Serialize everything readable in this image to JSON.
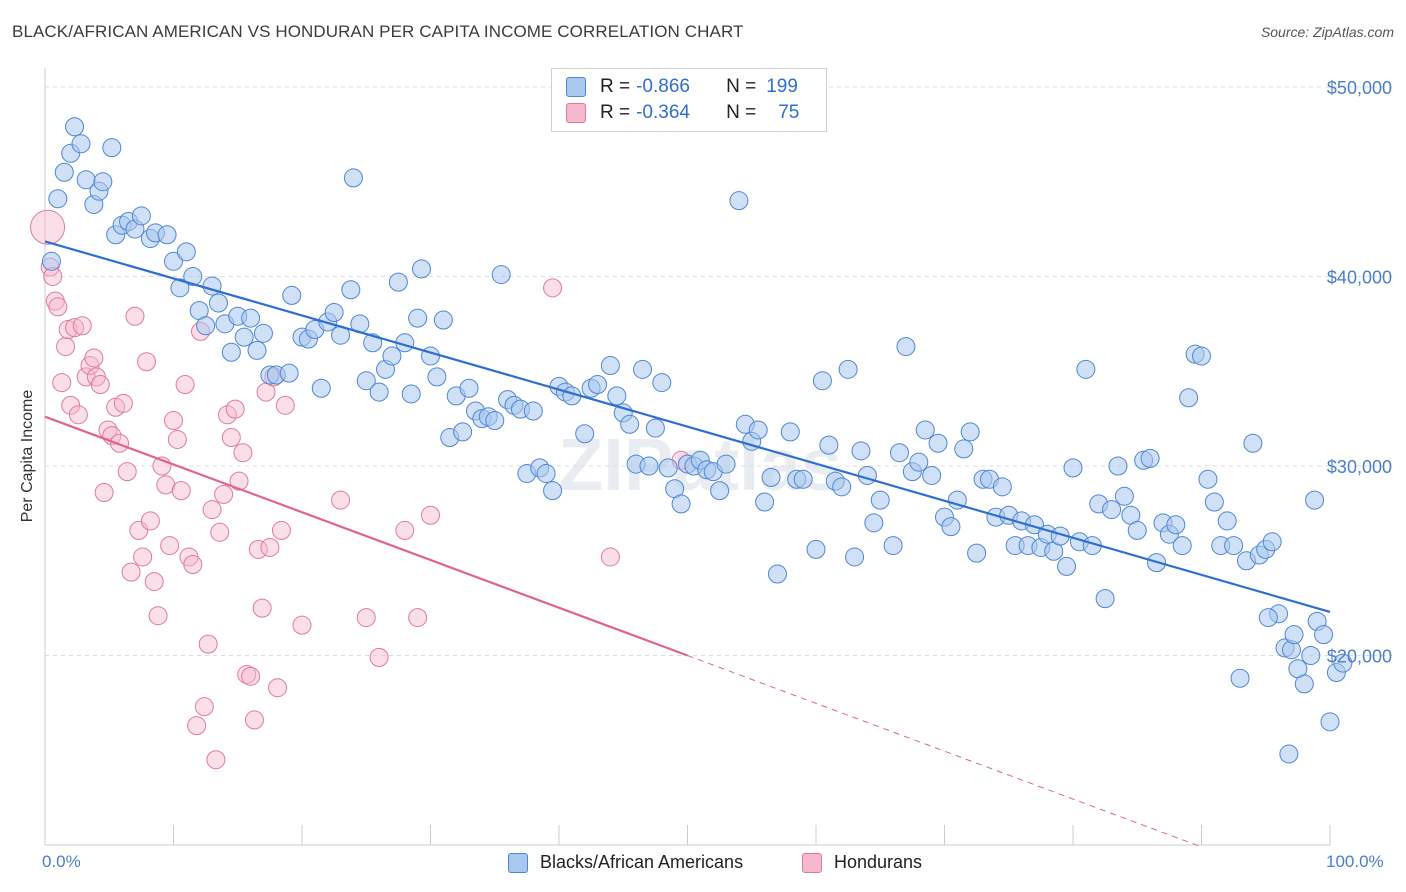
{
  "title": "BLACK/AFRICAN AMERICAN VS HONDURAN PER CAPITA INCOME CORRELATION CHART",
  "source": "Source: ZipAtlas.com",
  "colors": {
    "blue_fill": "#a9c8f0",
    "blue_stroke": "#4f86d6",
    "blue_line": "#2e6fcf",
    "pink_fill": "#f6b8cc",
    "pink_stroke": "#e07a9c",
    "pink_line": "#e0648e",
    "tick_label": "#4a7fc9",
    "grid": "#dcdcdc"
  },
  "legend": {
    "rows": [
      {
        "r_label": "R =",
        "r_value": "-0.866",
        "n_label": "N =",
        "n_value": "199",
        "color": "#a9c8f0"
      },
      {
        "r_label": "R =",
        "r_value": "-0.364",
        "n_label": "N =",
        "n_value": "75",
        "color": "#f6b8cc"
      }
    ]
  },
  "bottom_legend": [
    "Blacks/African Americans",
    "Hondurans"
  ],
  "watermark": "ZIPatlas",
  "chart_data": {
    "type": "scatter",
    "title": "BLACK/AFRICAN AMERICAN VS HONDURAN PER CAPITA INCOME CORRELATION CHART",
    "xlabel": "",
    "ylabel": "Per Capita Income",
    "x_tick_labels": [
      "0.0%",
      "100.0%"
    ],
    "y_tick_labels": [
      "$20,000",
      "$30,000",
      "$40,000",
      "$50,000"
    ],
    "y_ticks": [
      20000,
      30000,
      40000,
      50000
    ],
    "xlim": [
      0,
      100
    ],
    "ylim": [
      10000,
      51000
    ],
    "grid": true,
    "legend_position": "top-center",
    "series": [
      {
        "name": "Blacks/African Americans",
        "r": -0.866,
        "n": 199,
        "trend": {
          "x": [
            0,
            100
          ],
          "y": [
            41850,
            22300
          ]
        },
        "points": [
          [
            0.5,
            40800
          ],
          [
            1,
            44100
          ],
          [
            1.5,
            45500
          ],
          [
            2,
            46500
          ],
          [
            2.3,
            47900
          ],
          [
            2.8,
            47000
          ],
          [
            3.2,
            45100
          ],
          [
            3.8,
            43800
          ],
          [
            4.2,
            44500
          ],
          [
            4.5,
            45000
          ],
          [
            5.2,
            46800
          ],
          [
            5.5,
            42200
          ],
          [
            6,
            42700
          ],
          [
            6.5,
            42900
          ],
          [
            7,
            42500
          ],
          [
            7.5,
            43200
          ],
          [
            8.2,
            42000
          ],
          [
            8.6,
            42300
          ],
          [
            9.5,
            42200
          ],
          [
            10,
            40800
          ],
          [
            10.5,
            39400
          ],
          [
            11,
            41300
          ],
          [
            11.5,
            40000
          ],
          [
            12,
            38200
          ],
          [
            12.5,
            37400
          ],
          [
            13,
            39500
          ],
          [
            13.5,
            38600
          ],
          [
            14,
            37500
          ],
          [
            14.5,
            36000
          ],
          [
            15,
            37900
          ],
          [
            15.5,
            36800
          ],
          [
            16,
            37800
          ],
          [
            16.5,
            36100
          ],
          [
            17,
            37000
          ],
          [
            17.5,
            34800
          ],
          [
            18,
            34800
          ],
          [
            19,
            34900
          ],
          [
            19.2,
            39000
          ],
          [
            20,
            36800
          ],
          [
            20.5,
            36700
          ],
          [
            21,
            37200
          ],
          [
            21.5,
            34100
          ],
          [
            22,
            37600
          ],
          [
            22.5,
            38100
          ],
          [
            23,
            36900
          ],
          [
            23.8,
            39300
          ],
          [
            24,
            45200
          ],
          [
            24.5,
            37500
          ],
          [
            25,
            34500
          ],
          [
            25.5,
            36500
          ],
          [
            26,
            33900
          ],
          [
            26.5,
            35100
          ],
          [
            27,
            35800
          ],
          [
            27.5,
            39700
          ],
          [
            28,
            36500
          ],
          [
            28.5,
            33800
          ],
          [
            29,
            37800
          ],
          [
            29.3,
            40400
          ],
          [
            30,
            35800
          ],
          [
            30.5,
            34700
          ],
          [
            31,
            37700
          ],
          [
            31.5,
            31500
          ],
          [
            32,
            33700
          ],
          [
            32.5,
            31800
          ],
          [
            33,
            34100
          ],
          [
            33.5,
            32900
          ],
          [
            34,
            32500
          ],
          [
            34.5,
            32600
          ],
          [
            35,
            32400
          ],
          [
            35.5,
            40100
          ],
          [
            36,
            33500
          ],
          [
            36.5,
            33200
          ],
          [
            37,
            33000
          ],
          [
            37.5,
            29600
          ],
          [
            38,
            32900
          ],
          [
            38.5,
            29900
          ],
          [
            39,
            29600
          ],
          [
            39.5,
            28700
          ],
          [
            40,
            34200
          ],
          [
            40.5,
            33900
          ],
          [
            41,
            33700
          ],
          [
            42,
            31700
          ],
          [
            42.5,
            34100
          ],
          [
            43,
            34300
          ],
          [
            44,
            35300
          ],
          [
            44.5,
            33700
          ],
          [
            45,
            32800
          ],
          [
            45.5,
            32200
          ],
          [
            46,
            30100
          ],
          [
            46.5,
            35100
          ],
          [
            47,
            30000
          ],
          [
            47.5,
            32000
          ],
          [
            48,
            34400
          ],
          [
            48.5,
            29900
          ],
          [
            49,
            28800
          ],
          [
            49.5,
            28000
          ],
          [
            50,
            30100
          ],
          [
            50.5,
            30000
          ],
          [
            51,
            30300
          ],
          [
            51.5,
            29800
          ],
          [
            52,
            29700
          ],
          [
            52.5,
            28700
          ],
          [
            53,
            30100
          ],
          [
            54,
            44000
          ],
          [
            54.5,
            32200
          ],
          [
            55,
            31300
          ],
          [
            55.5,
            31900
          ],
          [
            56,
            28100
          ],
          [
            56.5,
            29400
          ],
          [
            57,
            24300
          ],
          [
            58,
            31800
          ],
          [
            58.5,
            29300
          ],
          [
            59,
            29300
          ],
          [
            60,
            25600
          ],
          [
            60.5,
            34500
          ],
          [
            61,
            31100
          ],
          [
            61.5,
            29200
          ],
          [
            62,
            28900
          ],
          [
            62.5,
            35100
          ],
          [
            63,
            25200
          ],
          [
            63.5,
            30800
          ],
          [
            64,
            29500
          ],
          [
            64.5,
            27000
          ],
          [
            65,
            28200
          ],
          [
            66,
            25800
          ],
          [
            66.5,
            30700
          ],
          [
            67,
            36300
          ],
          [
            67.5,
            29700
          ],
          [
            68,
            30200
          ],
          [
            68.5,
            31900
          ],
          [
            69,
            29500
          ],
          [
            69.5,
            31200
          ],
          [
            70,
            27300
          ],
          [
            70.5,
            26800
          ],
          [
            71,
            28200
          ],
          [
            71.5,
            30900
          ],
          [
            72,
            31800
          ],
          [
            72.5,
            25400
          ],
          [
            73,
            29300
          ],
          [
            73.5,
            29300
          ],
          [
            74,
            27300
          ],
          [
            74.5,
            28900
          ],
          [
            75,
            27400
          ],
          [
            75.5,
            25800
          ],
          [
            76,
            27100
          ],
          [
            76.5,
            25800
          ],
          [
            77,
            26900
          ],
          [
            77.5,
            25700
          ],
          [
            78,
            26400
          ],
          [
            78.5,
            25500
          ],
          [
            79,
            26300
          ],
          [
            79.5,
            24700
          ],
          [
            80,
            29900
          ],
          [
            80.5,
            26000
          ],
          [
            81,
            35100
          ],
          [
            81.5,
            25800
          ],
          [
            82,
            28000
          ],
          [
            82.5,
            23000
          ],
          [
            83,
            27700
          ],
          [
            83.5,
            30000
          ],
          [
            84,
            28400
          ],
          [
            84.5,
            27400
          ],
          [
            85,
            26600
          ],
          [
            85.5,
            30300
          ],
          [
            86,
            30400
          ],
          [
            86.5,
            24900
          ],
          [
            87,
            27000
          ],
          [
            87.5,
            26400
          ],
          [
            88,
            26900
          ],
          [
            88.5,
            25800
          ],
          [
            89,
            33600
          ],
          [
            89.5,
            35900
          ],
          [
            90,
            35800
          ],
          [
            90.5,
            29300
          ],
          [
            91,
            28100
          ],
          [
            91.5,
            25800
          ],
          [
            92,
            27100
          ],
          [
            92.5,
            25800
          ],
          [
            93,
            18800
          ],
          [
            93.5,
            25000
          ],
          [
            94,
            31200
          ],
          [
            94.5,
            25300
          ],
          [
            95,
            25600
          ],
          [
            95.5,
            26000
          ],
          [
            96,
            22200
          ],
          [
            96.5,
            20400
          ],
          [
            97,
            20300
          ],
          [
            97.5,
            19300
          ],
          [
            98,
            18500
          ],
          [
            98.5,
            20000
          ],
          [
            99,
            21800
          ],
          [
            99.5,
            21100
          ],
          [
            100,
            16500
          ],
          [
            100.5,
            19100
          ],
          [
            101,
            19600
          ],
          [
            96.8,
            14800
          ],
          [
            95.2,
            22000
          ],
          [
            97.2,
            21100
          ],
          [
            98.8,
            28200
          ]
        ]
      },
      {
        "name": "Hondurans",
        "r": -0.364,
        "n": 75,
        "trend": {
          "x": [
            0,
            50
          ],
          "y": [
            32600,
            20000
          ]
        },
        "trend_extension": {
          "x": [
            50,
            90
          ],
          "y": [
            20000,
            9900
          ]
        },
        "points": [
          [
            0.2,
            42600
          ],
          [
            0.4,
            40500
          ],
          [
            0.6,
            40000
          ],
          [
            0.8,
            38700
          ],
          [
            1.0,
            38400
          ],
          [
            1.3,
            34400
          ],
          [
            1.6,
            36300
          ],
          [
            1.8,
            37200
          ],
          [
            2.0,
            33200
          ],
          [
            2.3,
            37300
          ],
          [
            2.6,
            32700
          ],
          [
            2.9,
            37400
          ],
          [
            3.2,
            34700
          ],
          [
            3.5,
            35300
          ],
          [
            3.8,
            35700
          ],
          [
            4.0,
            34700
          ],
          [
            4.3,
            34300
          ],
          [
            4.6,
            28600
          ],
          [
            4.9,
            31900
          ],
          [
            5.2,
            31600
          ],
          [
            5.5,
            33100
          ],
          [
            5.8,
            31200
          ],
          [
            6.1,
            33300
          ],
          [
            6.4,
            29700
          ],
          [
            6.7,
            24400
          ],
          [
            7.0,
            37900
          ],
          [
            7.3,
            26600
          ],
          [
            7.6,
            25200
          ],
          [
            7.9,
            35500
          ],
          [
            8.2,
            27100
          ],
          [
            8.5,
            23900
          ],
          [
            8.8,
            22100
          ],
          [
            9.1,
            30000
          ],
          [
            9.4,
            29000
          ],
          [
            9.7,
            25800
          ],
          [
            10.0,
            32400
          ],
          [
            10.3,
            31400
          ],
          [
            10.6,
            28700
          ],
          [
            10.9,
            34300
          ],
          [
            11.2,
            25200
          ],
          [
            11.5,
            24800
          ],
          [
            11.8,
            16300
          ],
          [
            12.1,
            37100
          ],
          [
            12.4,
            17300
          ],
          [
            12.7,
            20600
          ],
          [
            13.0,
            27700
          ],
          [
            13.3,
            14500
          ],
          [
            13.6,
            26500
          ],
          [
            13.9,
            28500
          ],
          [
            14.2,
            32700
          ],
          [
            14.5,
            31500
          ],
          [
            14.8,
            33000
          ],
          [
            15.1,
            29200
          ],
          [
            15.4,
            30700
          ],
          [
            15.7,
            19000
          ],
          [
            16.0,
            18900
          ],
          [
            16.3,
            16600
          ],
          [
            16.6,
            25600
          ],
          [
            16.9,
            22500
          ],
          [
            17.2,
            33900
          ],
          [
            17.5,
            25700
          ],
          [
            17.8,
            34700
          ],
          [
            18.1,
            18300
          ],
          [
            18.4,
            26600
          ],
          [
            18.7,
            33200
          ],
          [
            20.0,
            21600
          ],
          [
            23.0,
            28200
          ],
          [
            25.0,
            22000
          ],
          [
            28.0,
            26600
          ],
          [
            29.0,
            22000
          ],
          [
            30.0,
            27400
          ],
          [
            39.5,
            39400
          ],
          [
            44.0,
            25200
          ],
          [
            49.5,
            30300
          ],
          [
            26.0,
            19900
          ]
        ]
      }
    ]
  }
}
